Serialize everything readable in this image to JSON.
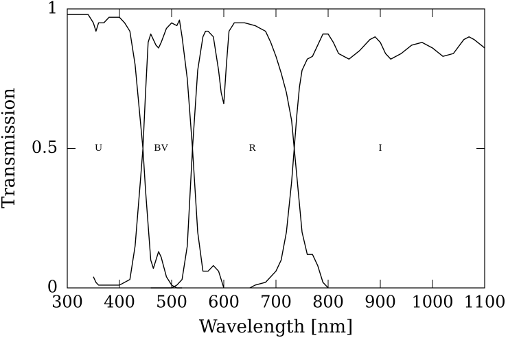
{
  "chart_data": {
    "type": "line",
    "x_label": "Wavelength [nm]",
    "y_label": "Transmission",
    "xlim": [
      300,
      1100
    ],
    "xticks": [
      300,
      400,
      500,
      600,
      700,
      800,
      900,
      1000,
      1100
    ],
    "ylim": [
      0,
      1
    ],
    "yticks": [
      0,
      0.5,
      1
    ],
    "grid": false,
    "annotations": [
      {
        "text": "U",
        "x": 360,
        "y": 0.5
      },
      {
        "text": "BV",
        "x": 480,
        "y": 0.5
      },
      {
        "text": "R",
        "x": 655,
        "y": 0.5
      },
      {
        "text": "I",
        "x": 900,
        "y": 0.5
      }
    ],
    "series": [
      {
        "color": "#000000",
        "x": [
          300,
          320,
          340,
          350,
          355,
          360,
          370,
          380,
          390,
          400,
          410,
          420,
          430,
          440,
          445,
          450,
          460,
          465,
          475,
          480,
          490,
          500,
          510,
          520
        ],
        "values": [
          0.98,
          0.98,
          0.98,
          0.95,
          0.92,
          0.95,
          0.95,
          0.97,
          0.97,
          0.97,
          0.95,
          0.92,
          0.8,
          0.6,
          0.5,
          0.35,
          0.1,
          0.07,
          0.13,
          0.11,
          0.04,
          0.01,
          0.0,
          0.0
        ]
      },
      {
        "color": "#000000",
        "x": [
          350,
          355,
          360,
          380,
          400,
          420,
          430,
          440,
          445,
          450,
          455,
          460,
          470,
          475,
          480,
          490,
          500,
          510,
          515,
          520,
          530,
          540,
          545,
          550,
          560,
          570,
          580,
          590,
          600
        ],
        "values": [
          0.04,
          0.02,
          0.01,
          0.01,
          0.01,
          0.03,
          0.15,
          0.38,
          0.5,
          0.7,
          0.88,
          0.91,
          0.87,
          0.86,
          0.88,
          0.93,
          0.95,
          0.94,
          0.96,
          0.9,
          0.75,
          0.5,
          0.35,
          0.2,
          0.06,
          0.06,
          0.08,
          0.06,
          0.0
        ]
      },
      {
        "color": "#000000",
        "x": [
          460,
          480,
          500,
          510,
          520,
          530,
          540,
          550,
          560,
          565,
          570,
          580,
          590,
          595,
          600,
          605,
          610,
          620,
          640,
          660,
          680,
          690,
          700,
          710,
          720,
          730,
          735,
          740,
          750,
          760,
          770,
          780,
          790,
          800
        ],
        "values": [
          0.0,
          0.0,
          0.0,
          0.01,
          0.03,
          0.15,
          0.5,
          0.78,
          0.9,
          0.92,
          0.92,
          0.9,
          0.78,
          0.7,
          0.66,
          0.8,
          0.92,
          0.95,
          0.95,
          0.94,
          0.92,
          0.88,
          0.83,
          0.77,
          0.7,
          0.6,
          0.5,
          0.4,
          0.2,
          0.12,
          0.12,
          0.08,
          0.02,
          0.0
        ]
      },
      {
        "color": "#000000",
        "x": [
          650,
          660,
          680,
          700,
          710,
          720,
          730,
          735,
          740,
          745,
          750,
          760,
          770,
          780,
          790,
          800,
          810,
          820,
          840,
          860,
          880,
          890,
          900,
          910,
          920,
          940,
          960,
          980,
          1000,
          1020,
          1040,
          1060,
          1070,
          1080,
          1100
        ],
        "values": [
          0.0,
          0.01,
          0.02,
          0.06,
          0.1,
          0.2,
          0.38,
          0.5,
          0.62,
          0.72,
          0.78,
          0.82,
          0.83,
          0.87,
          0.91,
          0.91,
          0.88,
          0.84,
          0.82,
          0.85,
          0.89,
          0.9,
          0.88,
          0.84,
          0.82,
          0.84,
          0.87,
          0.88,
          0.86,
          0.83,
          0.84,
          0.89,
          0.9,
          0.89,
          0.86
        ]
      }
    ]
  }
}
